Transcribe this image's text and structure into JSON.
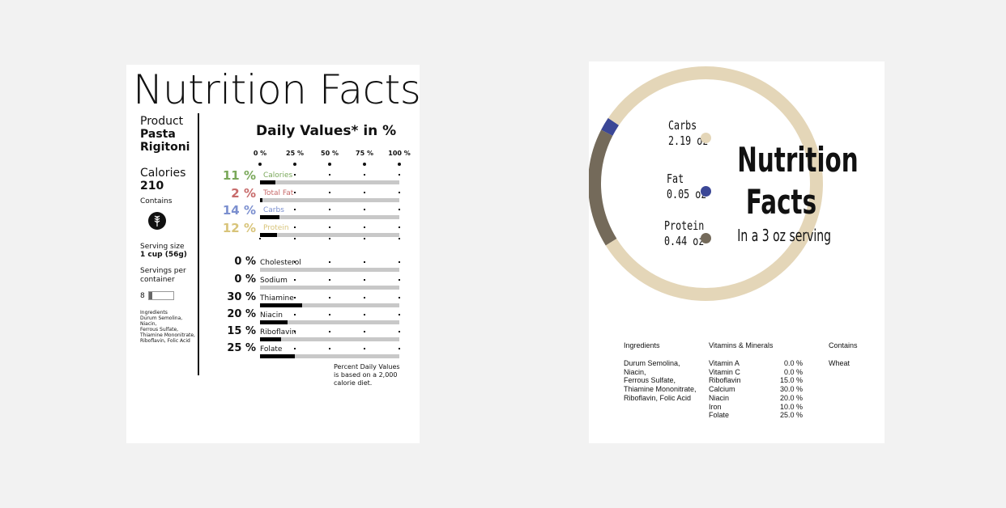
{
  "left": {
    "title": "Nutrition Facts",
    "product_label": "Product",
    "product_name_1": "Pasta",
    "product_name_2": "Rigitoni",
    "calories_label": "Calories",
    "calories_value": "210",
    "contains_label": "Contains",
    "serving_size_label": "Serving size",
    "serving_size_value": "1 cup (56g)",
    "servings_per_container_label_1": "Servings per",
    "servings_per_container_label_2": "container",
    "servings_per_container_value": "8",
    "ingredients_label": "Ingredients",
    "ingredients_lines": [
      "Durum Semolina,",
      "Niacin,",
      "Ferrous Sulfate,",
      "Thiamine Mononitrate,",
      "Riboflavin, Folic Acid"
    ],
    "daily_values_title": "Daily Values* in %",
    "footnote": "Percent Daily Values is based on a 2,000 calorie diet.",
    "grain_icon": "wheat-icon"
  },
  "chart_data": [
    {
      "type": "bar",
      "title": "Daily Values* in %",
      "xlim": [
        0,
        100
      ],
      "tick_labels": [
        "0 %",
        "25 %",
        "50 %",
        "75 %",
        "100 %"
      ],
      "categories": [
        "Calories",
        "Total Fat",
        "Carbs",
        "Protein",
        "Cholesterol",
        "Sodium",
        "Thiamine",
        "Niacin",
        "Riboflavin",
        "Folate"
      ],
      "values": [
        11,
        2,
        14,
        12,
        0,
        0,
        30,
        20,
        15,
        25
      ],
      "value_labels": [
        "11 %",
        "2 %",
        "14 %",
        "12 %",
        "0 %",
        "0 %",
        "30 %",
        "20 %",
        "15 %",
        "25 %"
      ],
      "colors": [
        "#7aa85a",
        "#c76a6a",
        "#7b8fcf",
        "#d8c47a",
        "#111111",
        "#111111",
        "#111111",
        "#111111",
        "#111111",
        "#111111"
      ]
    },
    {
      "type": "pie",
      "style": "donut",
      "title": "Nutrition Facts",
      "subtitle": "In a 3 oz serving",
      "categories": [
        "Carbs",
        "Fat",
        "Protein"
      ],
      "values": [
        2.19,
        0.05,
        0.44
      ],
      "value_labels": [
        "2.19 oz",
        "0.05 oz",
        "0.44 oz"
      ],
      "colors": [
        "#e4d6b8",
        "#3b4796",
        "#746a5a"
      ]
    }
  ],
  "right": {
    "title_line_1": "Nutrition",
    "title_line_2": "Facts",
    "subtitle": "In a 3 oz serving",
    "ingredients_header": "Ingredients",
    "ingredients_lines": [
      "Durum Semolina,",
      "Niacin,",
      "Ferrous Sulfate,",
      "Thiamine Mononitrate,",
      "Riboflavin, Folic Acid"
    ],
    "vitamins_header": "Vitamins & Minerals",
    "vitamins": [
      {
        "name": "Vitamin A",
        "value": "0.0 %"
      },
      {
        "name": "Vitamin C",
        "value": "0.0 %"
      },
      {
        "name": "Riboflavin",
        "value": "15.0 %"
      },
      {
        "name": "Calcium",
        "value": "30.0 %"
      },
      {
        "name": "Niacin",
        "value": "20.0 %"
      },
      {
        "name": "Iron",
        "value": "10.0 %"
      },
      {
        "name": "Folate",
        "value": "25.0 %"
      }
    ],
    "contains_header": "Contains",
    "contains_value": "Wheat"
  }
}
